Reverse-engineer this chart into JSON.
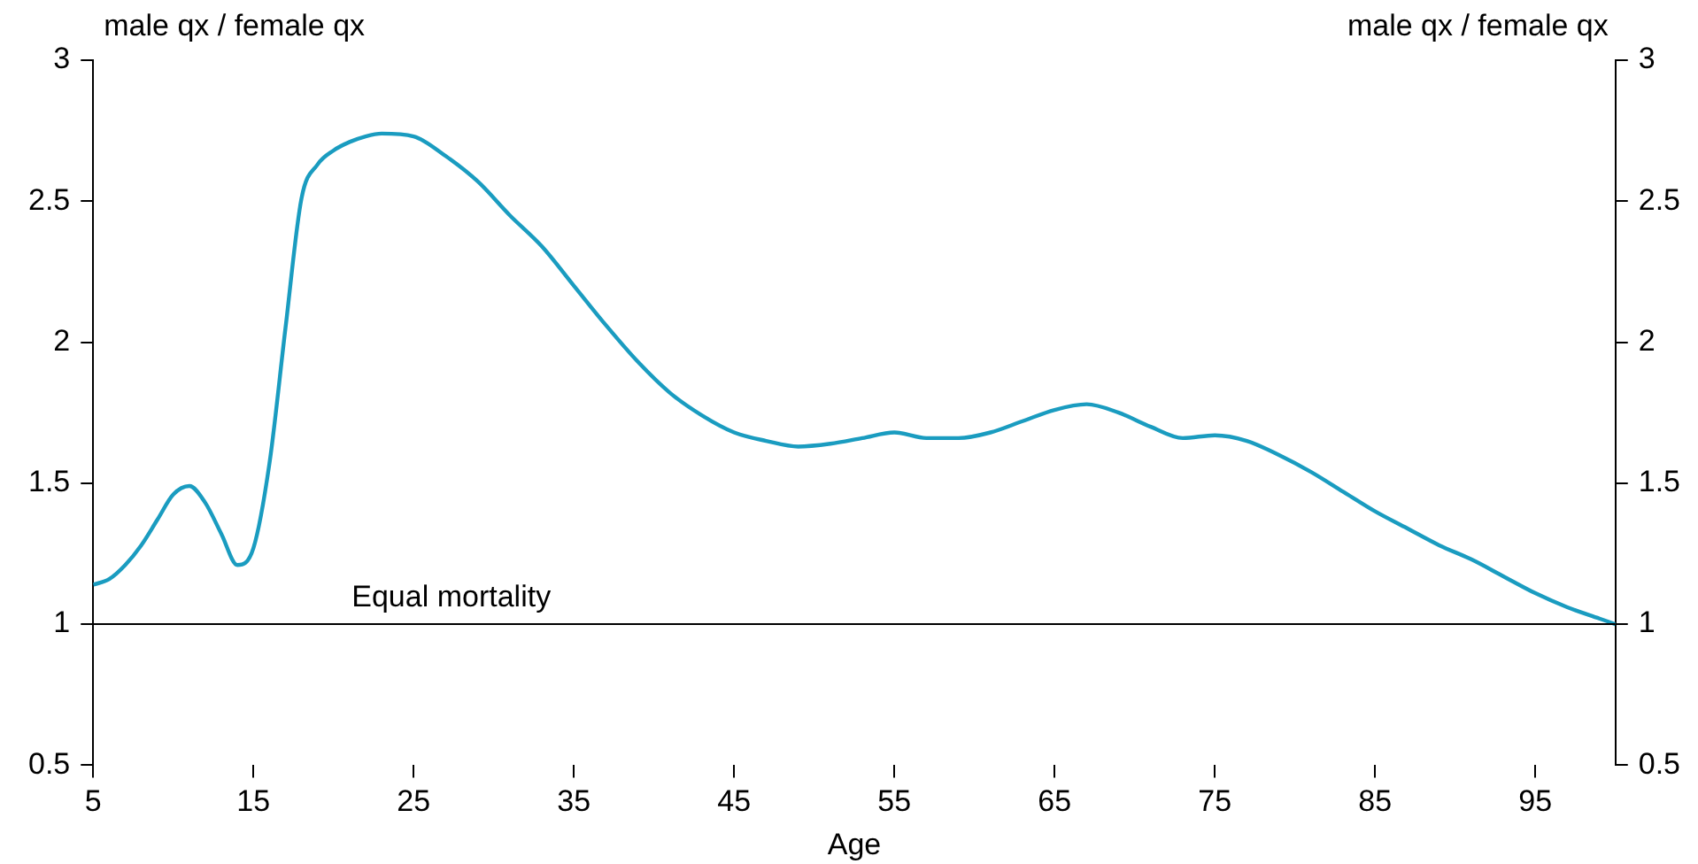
{
  "chart_data": {
    "type": "line",
    "xlabel": "Age",
    "ylabel": "male qx / female qx",
    "y2label": "male qx / female qx",
    "x": [
      5,
      6,
      7,
      8,
      9,
      10,
      11,
      12,
      13,
      14,
      15,
      16,
      17,
      18,
      19,
      20,
      21,
      22,
      23,
      25,
      27,
      29,
      31,
      33,
      35,
      37,
      39,
      41,
      43,
      45,
      47,
      49,
      51,
      53,
      55,
      57,
      59,
      61,
      63,
      65,
      67,
      69,
      71,
      73,
      75,
      77,
      79,
      81,
      83,
      85,
      87,
      89,
      91,
      93,
      95,
      97,
      99,
      100
    ],
    "series": [
      {
        "color": "#1a9cc0",
        "values": [
          1.14,
          1.16,
          1.21,
          1.28,
          1.37,
          1.46,
          1.49,
          1.43,
          1.32,
          1.21,
          1.27,
          1.57,
          2.05,
          2.51,
          2.63,
          2.68,
          2.71,
          2.73,
          2.74,
          2.73,
          2.66,
          2.57,
          2.45,
          2.34,
          2.2,
          2.06,
          1.93,
          1.82,
          1.74,
          1.68,
          1.65,
          1.63,
          1.64,
          1.66,
          1.68,
          1.66,
          1.66,
          1.68,
          1.72,
          1.76,
          1.78,
          1.75,
          1.7,
          1.66,
          1.67,
          1.65,
          1.6,
          1.54,
          1.47,
          1.4,
          1.34,
          1.28,
          1.23,
          1.17,
          1.11,
          1.06,
          1.02,
          1.0
        ]
      }
    ],
    "xlim": [
      5,
      100
    ],
    "xticks": [
      5,
      15,
      25,
      35,
      45,
      55,
      65,
      75,
      85,
      95
    ],
    "ylim": [
      0.5,
      3
    ],
    "yticks": [
      0.5,
      1,
      1.5,
      2,
      2.5,
      3
    ],
    "y2lim": [
      0.5,
      3
    ],
    "y2ticks": [
      0.5,
      1,
      1.5,
      2,
      2.5,
      3
    ],
    "ref_lines": [
      {
        "axis": "y",
        "value": 1,
        "label": "Equal mortality",
        "color": "#000000"
      }
    ],
    "grid": false,
    "legend": false,
    "marker": "none",
    "line_style": "solid"
  }
}
